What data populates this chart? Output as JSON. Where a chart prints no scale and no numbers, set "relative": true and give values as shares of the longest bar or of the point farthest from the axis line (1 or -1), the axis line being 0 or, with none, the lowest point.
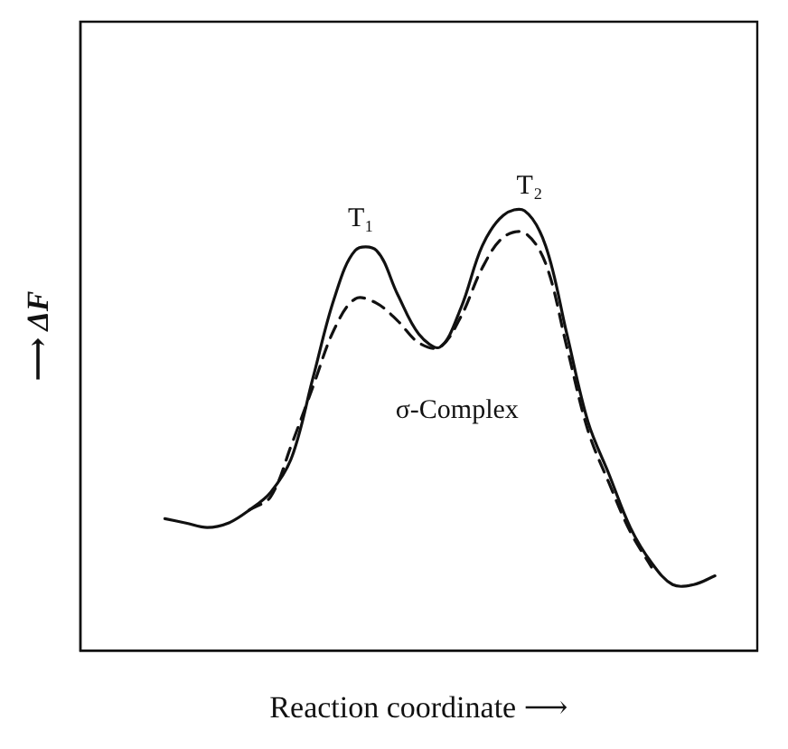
{
  "chart_data": {
    "type": "line",
    "relative": true,
    "xlabel": "Reaction coordinate ⟶",
    "ylabel": "⟶ ΔF",
    "categories": [
      null,
      null,
      null,
      null,
      null,
      null,
      null,
      null,
      null,
      null,
      null,
      null,
      null,
      null,
      null,
      null,
      null,
      null,
      null,
      null,
      null,
      null,
      null,
      null,
      null,
      null,
      null,
      null,
      null,
      null,
      null,
      null,
      null
    ],
    "series": [
      {
        "color": "#111111",
        "line_style": "solid",
        "values": [
          null,
          null,
          null,
          null,
          0.3,
          0.29,
          0.28,
          0.29,
          0.32,
          0.36,
          0.44,
          0.62,
          0.8,
          0.91,
          0.91,
          0.81,
          0.72,
          0.69,
          0.78,
          0.92,
          0.99,
          1.0,
          0.92,
          0.72,
          0.52,
          0.4,
          0.28,
          0.2,
          0.15,
          0.15,
          0.17,
          null,
          null
        ]
      },
      {
        "color": "#111111",
        "line_style": "dashed",
        "values": [
          null,
          null,
          null,
          null,
          null,
          null,
          null,
          null,
          0.32,
          0.35,
          0.47,
          0.6,
          0.73,
          0.8,
          0.79,
          0.75,
          0.7,
          0.69,
          0.76,
          0.87,
          0.94,
          0.95,
          0.88,
          0.69,
          0.5,
          0.38,
          0.27,
          0.19,
          null,
          null,
          null,
          null,
          null
        ]
      }
    ],
    "annotations": [
      "T₁",
      "T₂",
      "σ-Complex"
    ],
    "marker": "none",
    "grid": false,
    "legend": false
  }
}
